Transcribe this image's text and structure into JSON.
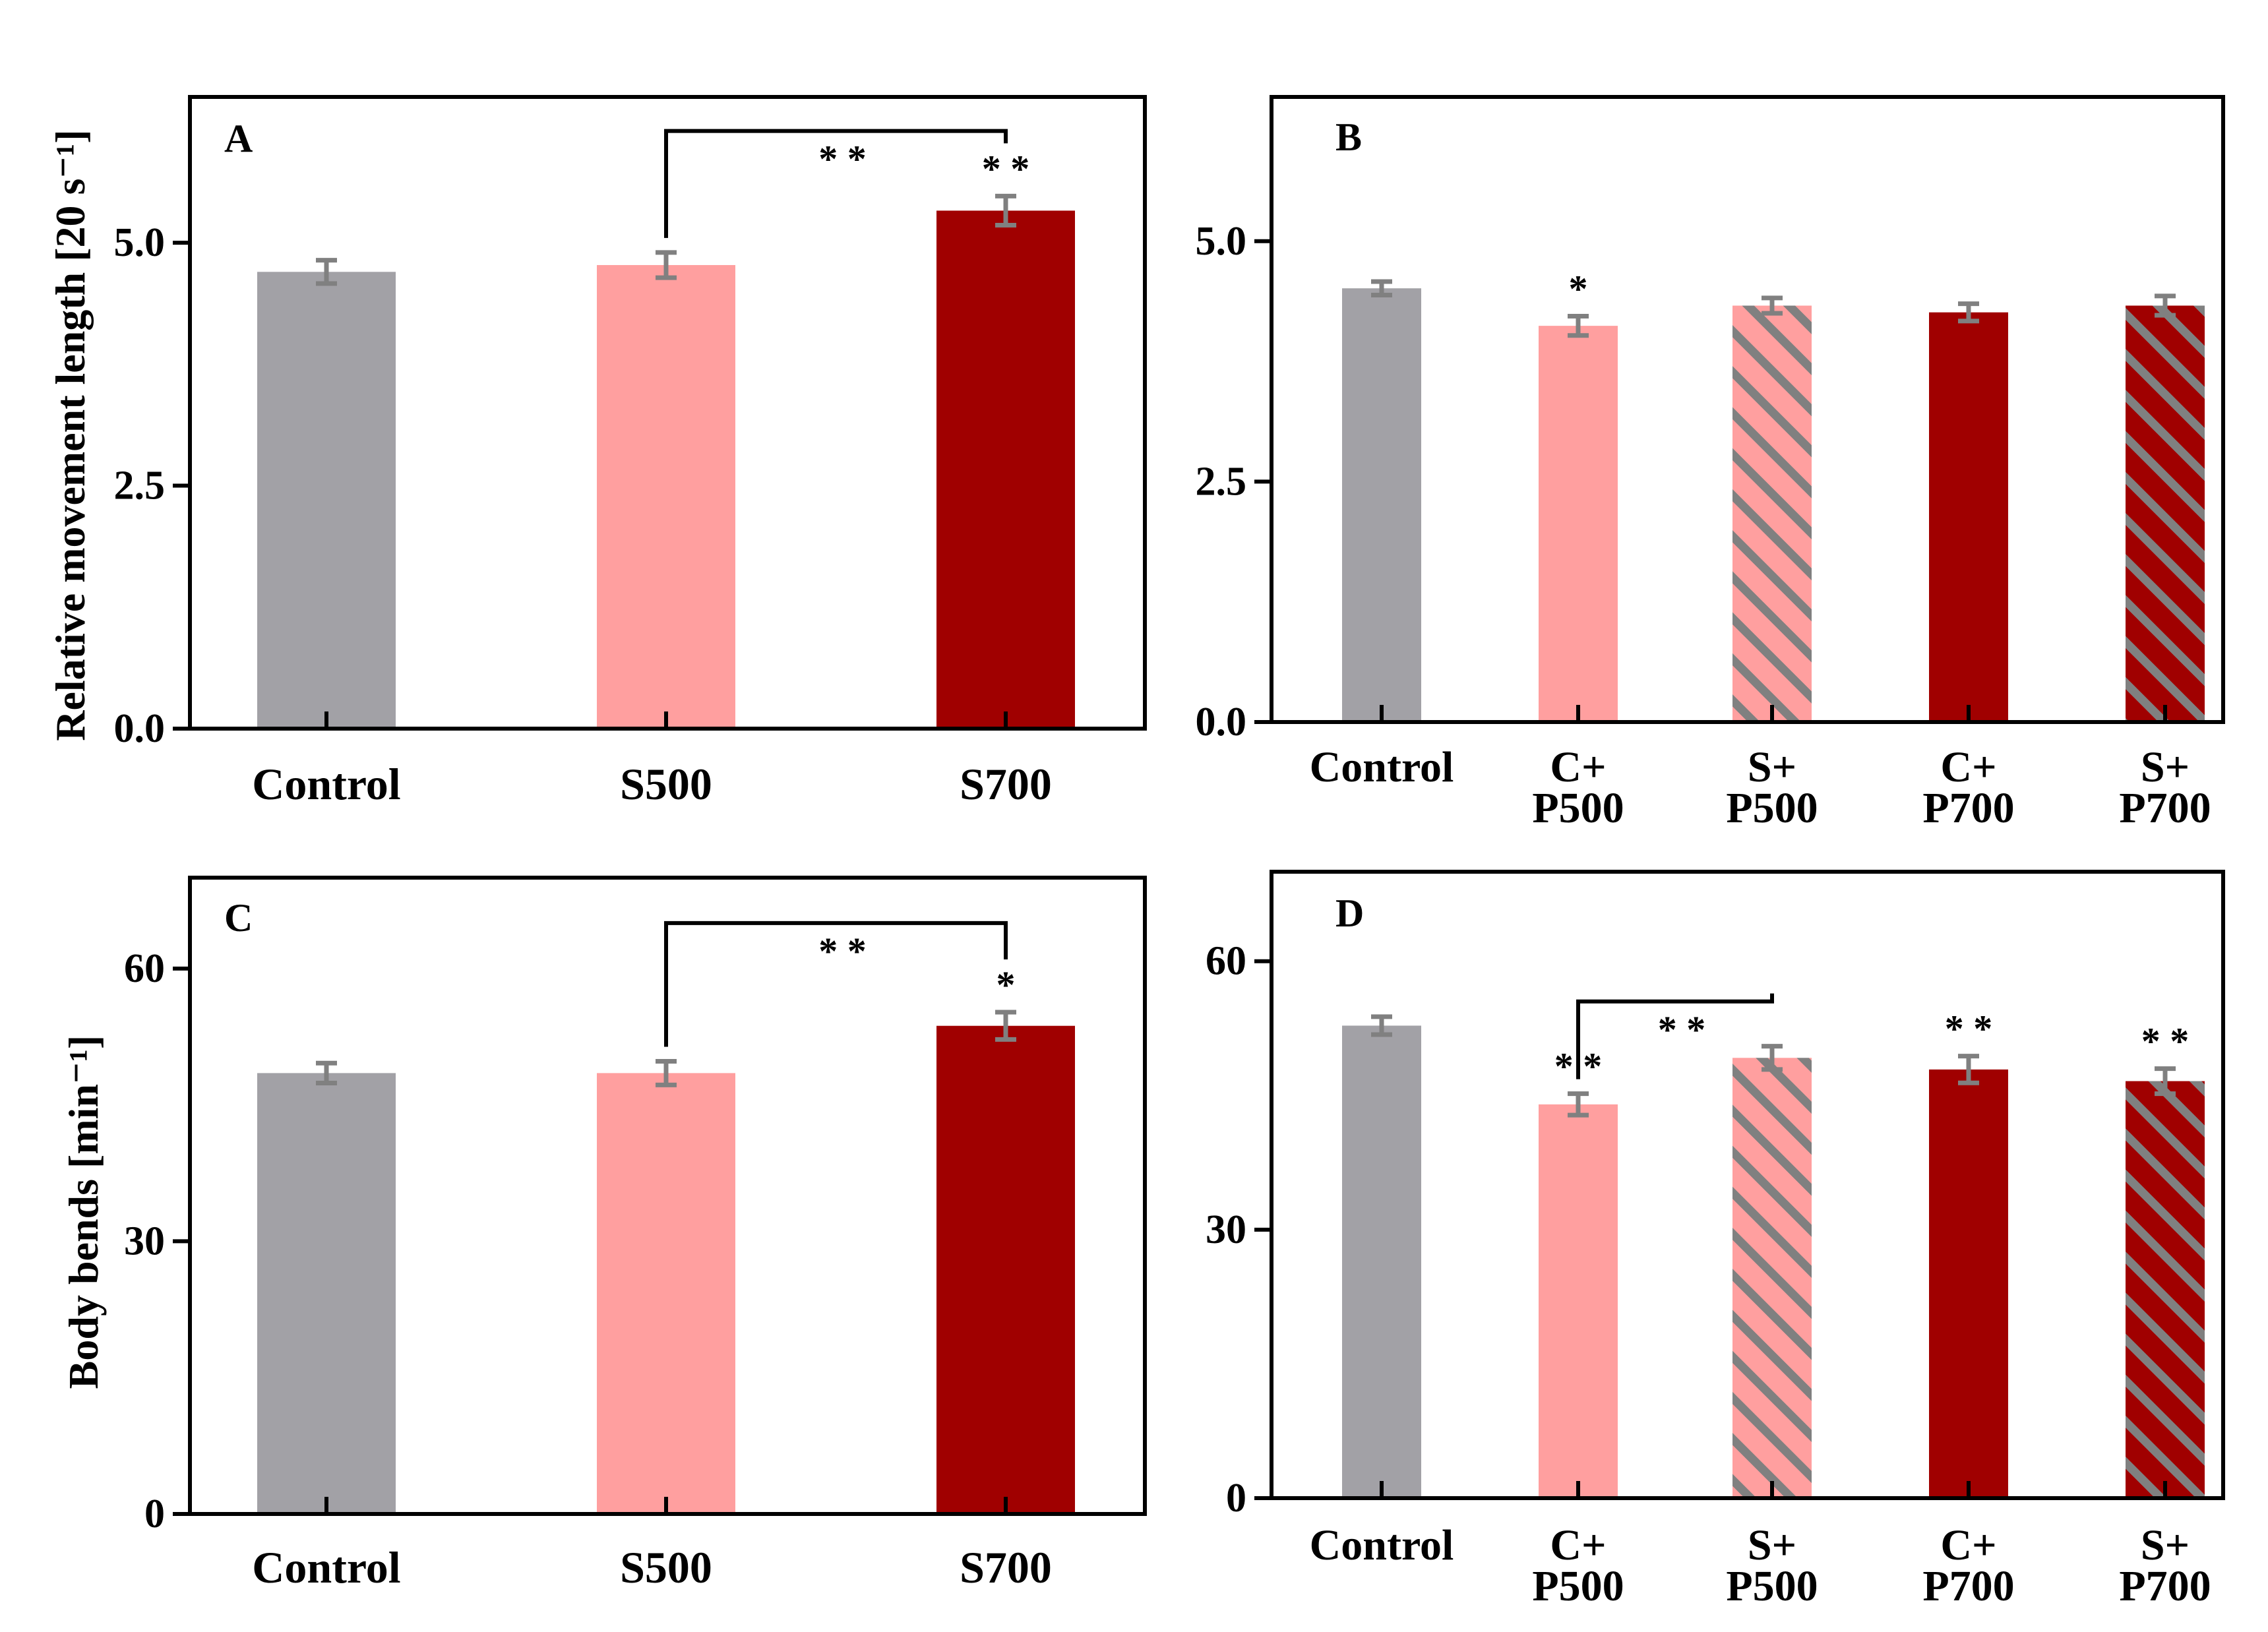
{
  "chart_data": [
    {
      "panel": "A",
      "type": "bar",
      "ylabel": "Relative movement length [20 s⁻¹]",
      "categories": [
        [
          "Control"
        ],
        [
          "S500"
        ],
        [
          "S700"
        ]
      ],
      "values": [
        4.7,
        4.77,
        5.33
      ],
      "errors": [
        0.12,
        0.13,
        0.15
      ],
      "fills": [
        "gray",
        "pink",
        "red"
      ],
      "ylim": [
        0,
        6.5
      ],
      "yticks": [
        0,
        2.5,
        5.0
      ],
      "yticklabels": [
        "0.0",
        "2.5",
        "5.0"
      ],
      "annotations": [
        {
          "index": 2,
          "text": "* *"
        }
      ],
      "brackets": [
        {
          "from": 1,
          "to": 2,
          "top": 6.15,
          "text": "* *"
        }
      ]
    },
    {
      "panel": "B",
      "type": "bar",
      "ylabel": "",
      "categories": [
        [
          "Control"
        ],
        [
          "C+",
          "P500"
        ],
        [
          "S+",
          "P500"
        ],
        [
          "C+",
          "P700"
        ],
        [
          "S+",
          "P700"
        ]
      ],
      "values": [
        4.51,
        4.12,
        4.33,
        4.26,
        4.33
      ],
      "errors": [
        0.07,
        0.1,
        0.08,
        0.09,
        0.1
      ],
      "fills": [
        "gray",
        "pink",
        "pink-hatch",
        "red",
        "red-hatch"
      ],
      "ylim": [
        0,
        6.5
      ],
      "yticks": [
        0,
        2.5,
        5.0
      ],
      "yticklabels": [
        "0.0",
        "2.5",
        "5.0"
      ],
      "annotations": [
        {
          "index": 1,
          "text": "*"
        }
      ],
      "brackets": []
    },
    {
      "panel": "C",
      "type": "bar",
      "ylabel": "Body bends [min⁻¹]",
      "categories": [
        [
          "Control"
        ],
        [
          "S500"
        ],
        [
          "S700"
        ]
      ],
      "values": [
        48.5,
        48.5,
        53.7
      ],
      "errors": [
        1.1,
        1.3,
        1.5
      ],
      "fills": [
        "gray",
        "pink",
        "red"
      ],
      "ylim": [
        0,
        70
      ],
      "yticks": [
        0,
        30,
        60
      ],
      "yticklabels": [
        "0",
        "30",
        "60"
      ],
      "annotations": [
        {
          "index": 2,
          "text": "*"
        }
      ],
      "brackets": [
        {
          "from": 1,
          "to": 2,
          "top": 65.0,
          "text": "* *"
        }
      ]
    },
    {
      "panel": "D",
      "type": "bar",
      "ylabel": "",
      "categories": [
        [
          "Control"
        ],
        [
          "C+",
          "P500"
        ],
        [
          "S+",
          "P500"
        ],
        [
          "C+",
          "P700"
        ],
        [
          "S+",
          "P700"
        ]
      ],
      "values": [
        52.8,
        44.0,
        49.2,
        47.9,
        46.6
      ],
      "errors": [
        1.0,
        1.2,
        1.3,
        1.5,
        1.4
      ],
      "fills": [
        "gray",
        "pink",
        "pink-hatch",
        "red",
        "red-hatch"
      ],
      "ylim": [
        0,
        70
      ],
      "yticks": [
        0,
        30,
        60
      ],
      "yticklabels": [
        "0",
        "30",
        "60"
      ],
      "annotations": [
        {
          "index": 1,
          "text": "* *"
        },
        {
          "index": 3,
          "text": "* *"
        },
        {
          "index": 4,
          "text": "* *"
        }
      ],
      "brackets": [
        {
          "from": 1,
          "to": 2,
          "top": 55.5,
          "text": "* *"
        }
      ]
    }
  ],
  "colors": {
    "gray": "#a2a1a6",
    "pink": "#ff9f9f",
    "red": "#a00000",
    "error": "#808080",
    "hatch": "#808080"
  }
}
